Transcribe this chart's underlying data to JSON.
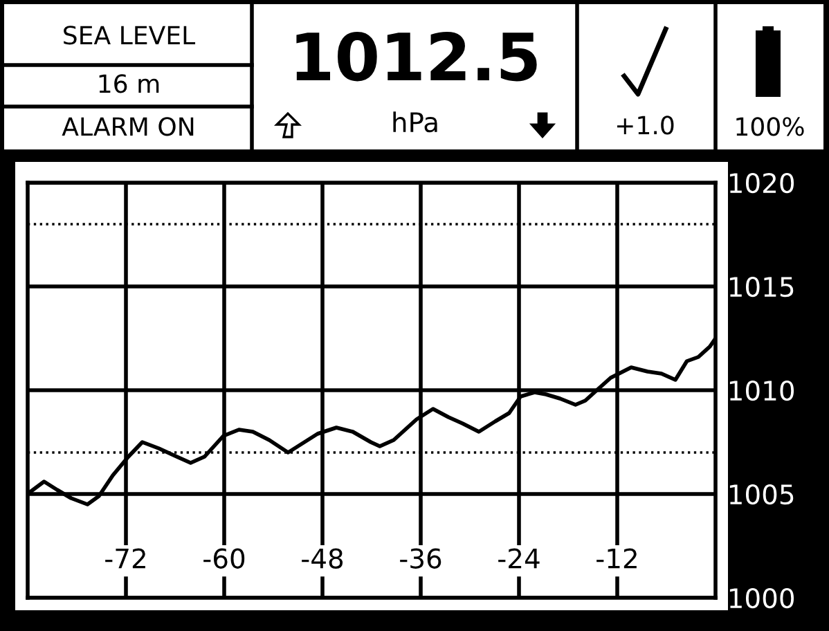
{
  "chart_data": {
    "type": "line",
    "annotations": [
      "SEA LEVEL",
      "16 m",
      "ALARM ON",
      "1012.5",
      "hPa",
      "+1.0",
      "100%"
    ],
    "series": [
      {
        "color": "#000000",
        "x": [
          -83.7,
          -82.0,
          -80.4,
          -78.7,
          -76.7,
          -75.3,
          -73.6,
          -71.7,
          -70.0,
          -68.0,
          -65.8,
          -64.1,
          -62.4,
          -60.1,
          -58.2,
          -56.5,
          -54.5,
          -52.2,
          -50.6,
          -48.6,
          -46.3,
          -44.3,
          -42.1,
          -41.0,
          -39.3,
          -36.5,
          -34.5,
          -32.6,
          -30.9,
          -28.9,
          -26.9,
          -25.2,
          -23.8,
          -22.1,
          -20.7,
          -19.0,
          -17.1,
          -15.9,
          -14.5,
          -12.8,
          -10.3,
          -8.3,
          -6.6,
          -4.9,
          -3.5,
          -2.1,
          -0.7,
          0
        ],
        "values": [
          1005.1,
          1005.6,
          1005.2,
          1004.8,
          1004.5,
          1004.9,
          1005.9,
          1006.8,
          1007.5,
          1007.2,
          1006.8,
          1006.5,
          1006.8,
          1007.8,
          1008.1,
          1008.0,
          1007.6,
          1007.0,
          1007.4,
          1007.9,
          1008.2,
          1008.0,
          1007.5,
          1007.3,
          1007.6,
          1008.6,
          1009.1,
          1008.7,
          1008.4,
          1008.0,
          1008.5,
          1008.9,
          1009.7,
          1009.9,
          1009.8,
          1009.6,
          1009.3,
          1009.5,
          1010.0,
          1010.6,
          1011.1,
          1010.9,
          1010.8,
          1010.5,
          1011.4,
          1011.6,
          1012.1,
          1012.5
        ]
      }
    ],
    "xlim": [
      -84,
      0
    ],
    "xticks": [
      -72,
      -60,
      -48,
      -36,
      -24,
      -12
    ],
    "ylim": [
      1000,
      1020
    ],
    "yticks": [
      1000,
      1005,
      1010,
      1015,
      1020
    ],
    "grid": true,
    "line_style": "solid",
    "ref_lines": [
      {
        "axis": "y",
        "value": 1018,
        "line_style": "dotted"
      },
      {
        "axis": "y",
        "value": 1007,
        "line_style": "dotted"
      }
    ]
  }
}
